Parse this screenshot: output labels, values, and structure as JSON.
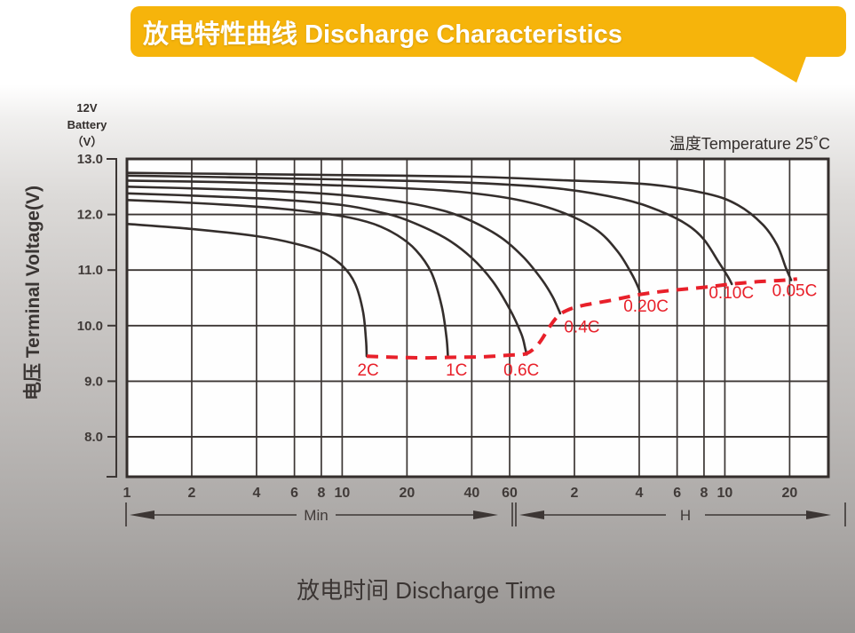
{
  "banner": {
    "title": "放电特性曲线 Discharge Characteristics",
    "bg_color": "#F6B40B",
    "text_color": "#FFFFFF"
  },
  "chart": {
    "battery_label": [
      "12V",
      "Battery",
      "（V）"
    ],
    "temperature_label": "温度Temperature 25˚C",
    "y_axis_title": "电压 Terminal Voltage(V)",
    "x_axis_title": "放电时间 Discharge Time",
    "unit_min": "Min",
    "unit_hour": "H"
  },
  "chart_data": {
    "type": "line",
    "title": "放电特性曲线 Discharge Characteristics",
    "xlabel": "放电时间 Discharge Time",
    "ylabel": "电压 Terminal Voltage(V)",
    "x_scale": "log",
    "x_unit": "minutes",
    "y_range": [
      8.0,
      13.0
    ],
    "grid": true,
    "temperature": "25˚C",
    "colors": {
      "curve": "#342e2c",
      "grid": "#3c3634",
      "cutoff": "#e8202a",
      "label_text": "#403a38"
    },
    "y_ticks": [
      {
        "label": "13.0",
        "v": 13.0
      },
      {
        "label": "12.0",
        "v": 12.0
      },
      {
        "label": "11.0",
        "v": 11.0
      },
      {
        "label": "10.0",
        "v": 10.0
      },
      {
        "label": "9.0",
        "v": 9.0
      },
      {
        "label": "8.0",
        "v": 8.0
      }
    ],
    "y_gridlines": [
      12,
      11,
      10,
      9,
      8
    ],
    "x_ticks_min": [
      {
        "label": "1",
        "t": 1
      },
      {
        "label": "2",
        "t": 2
      },
      {
        "label": "4",
        "t": 4
      },
      {
        "label": "6",
        "t": 6
      },
      {
        "label": "8",
        "t": 8
      },
      {
        "label": "10",
        "t": 10
      },
      {
        "label": "20",
        "t": 20
      },
      {
        "label": "40",
        "t": 40
      },
      {
        "label": "60",
        "t": 60
      }
    ],
    "x_ticks_hour": [
      {
        "label": "2",
        "t": 120
      },
      {
        "label": "4",
        "t": 240
      },
      {
        "label": "6",
        "t": 360
      },
      {
        "label": "8",
        "t": 480
      },
      {
        "label": "10",
        "t": 600
      },
      {
        "label": "20",
        "t": 1200
      }
    ],
    "series": [
      {
        "name": "0.05C",
        "label_pos": {
          "t": 1265,
          "v": 10.63
        },
        "points": [
          [
            1,
            12.75
          ],
          [
            3,
            12.73
          ],
          [
            10,
            12.71
          ],
          [
            40,
            12.68
          ],
          [
            100,
            12.62
          ],
          [
            270,
            12.54
          ],
          [
            500,
            12.37
          ],
          [
            690,
            12.17
          ],
          [
            900,
            11.82
          ],
          [
            1050,
            11.45
          ],
          [
            1150,
            11.05
          ],
          [
            1220,
            10.82
          ]
        ]
      },
      {
        "name": "0.10C",
        "label_pos": {
          "t": 643,
          "v": 10.59
        },
        "points": [
          [
            1,
            12.7
          ],
          [
            3,
            12.67
          ],
          [
            10,
            12.63
          ],
          [
            40,
            12.57
          ],
          [
            100,
            12.47
          ],
          [
            200,
            12.28
          ],
          [
            300,
            12.06
          ],
          [
            400,
            11.82
          ],
          [
            480,
            11.55
          ],
          [
            560,
            11.15
          ],
          [
            620,
            10.88
          ],
          [
            646,
            10.75
          ]
        ]
      },
      {
        "name": "0.20C",
        "label_pos": {
          "t": 258,
          "v": 10.35
        },
        "points": [
          [
            1,
            12.61
          ],
          [
            3,
            12.58
          ],
          [
            10,
            12.52
          ],
          [
            30,
            12.43
          ],
          [
            60,
            12.29
          ],
          [
            100,
            12.07
          ],
          [
            150,
            11.74
          ],
          [
            190,
            11.34
          ],
          [
            220,
            10.95
          ],
          [
            238,
            10.68
          ],
          [
            242,
            10.56
          ]
        ]
      },
      {
        "name": "0.4C",
        "label_pos": {
          "t": 130,
          "v": 9.97
        },
        "points": [
          [
            1,
            12.5
          ],
          [
            2,
            12.47
          ],
          [
            5,
            12.42
          ],
          [
            10,
            12.35
          ],
          [
            20,
            12.21
          ],
          [
            30,
            12.06
          ],
          [
            40,
            11.88
          ],
          [
            55,
            11.58
          ],
          [
            70,
            11.22
          ],
          [
            85,
            10.82
          ],
          [
            95,
            10.52
          ],
          [
            101,
            10.3
          ],
          [
            103,
            10.22
          ]
        ]
      },
      {
        "name": "0.6C",
        "label_pos": {
          "t": 68,
          "v": 9.2
        },
        "points": [
          [
            1,
            12.38
          ],
          [
            2,
            12.34
          ],
          [
            5,
            12.27
          ],
          [
            10,
            12.17
          ],
          [
            15,
            12.04
          ],
          [
            20,
            11.9
          ],
          [
            30,
            11.58
          ],
          [
            40,
            11.22
          ],
          [
            50,
            10.8
          ],
          [
            60,
            10.3
          ],
          [
            68,
            9.85
          ],
          [
            71,
            9.58
          ],
          [
            72,
            9.48
          ]
        ]
      },
      {
        "name": "1C",
        "label_pos": {
          "t": 34,
          "v": 9.2
        },
        "points": [
          [
            1,
            12.26
          ],
          [
            2,
            12.21
          ],
          [
            4,
            12.14
          ],
          [
            6,
            12.08
          ],
          [
            10,
            11.97
          ],
          [
            14,
            11.83
          ],
          [
            18,
            11.63
          ],
          [
            22,
            11.36
          ],
          [
            26,
            10.95
          ],
          [
            29,
            10.35
          ],
          [
            30.5,
            9.8
          ],
          [
            31,
            9.45
          ]
        ]
      },
      {
        "name": "2C",
        "label_pos": {
          "t": 13.2,
          "v": 9.2
        },
        "points": [
          [
            1,
            11.83
          ],
          [
            2,
            11.74
          ],
          [
            4,
            11.61
          ],
          [
            6,
            11.48
          ],
          [
            8,
            11.33
          ],
          [
            10,
            11.08
          ],
          [
            11.5,
            10.75
          ],
          [
            12.5,
            10.25
          ],
          [
            12.9,
            9.75
          ],
          [
            13,
            9.45
          ]
        ]
      }
    ],
    "cutoff_curve": {
      "name": "end-of-discharge-voltage",
      "style": "dashed",
      "points": [
        [
          13,
          9.45
        ],
        [
          18,
          9.43
        ],
        [
          25,
          9.42
        ],
        [
          31,
          9.43
        ],
        [
          45,
          9.44
        ],
        [
          60,
          9.47
        ],
        [
          72,
          9.5
        ],
        [
          82,
          9.68
        ],
        [
          92,
          9.98
        ],
        [
          100,
          10.16
        ],
        [
          110,
          10.27
        ],
        [
          130,
          10.36
        ],
        [
          180,
          10.46
        ],
        [
          242,
          10.56
        ],
        [
          330,
          10.63
        ],
        [
          480,
          10.69
        ],
        [
          646,
          10.75
        ],
        [
          850,
          10.79
        ],
        [
          1050,
          10.81
        ],
        [
          1230,
          10.83
        ],
        [
          1300,
          10.84
        ]
      ]
    }
  }
}
